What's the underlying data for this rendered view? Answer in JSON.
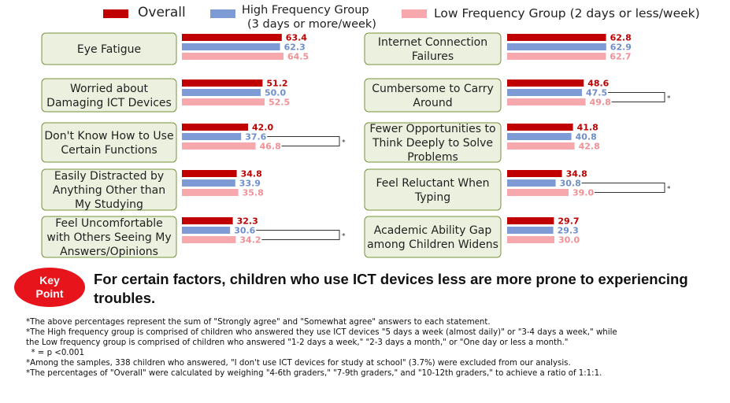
{
  "legend": {
    "overall": "Overall",
    "high_line1": "High Frequency Group",
    "high_line2": "(3 days or more/week)",
    "low": "Low Frequency Group (2 days or less/week)"
  },
  "colors": {
    "overall": "#c00000",
    "high": "#7f9bd6",
    "low": "#f6a8ad",
    "high_text": "#6e8fcc",
    "low_text": "#f29096",
    "box_fill": "#ebf1de",
    "box_border": "#77933c"
  },
  "chart_data": {
    "type": "bar",
    "orientation": "horizontal",
    "series_names": [
      "Overall",
      "High Frequency Group (3 days or more/week)",
      "Low Frequency Group (2 days or less/week)"
    ],
    "significance_marker": "*",
    "categories": [
      {
        "label_lines": [
          "Eye Fatigue"
        ],
        "values": [
          63.4,
          62.3,
          64.5
        ],
        "sig": false
      },
      {
        "label_lines": [
          "Worried about",
          "Damaging ICT Devices"
        ],
        "values": [
          51.2,
          50.0,
          52.5
        ],
        "sig": false
      },
      {
        "label_lines": [
          "Don't Know How to Use",
          "Certain Functions"
        ],
        "values": [
          42.0,
          37.6,
          46.8
        ],
        "sig": true
      },
      {
        "label_lines": [
          "Easily Distracted by",
          "Anything Other than",
          "My Studying"
        ],
        "values": [
          34.8,
          33.9,
          35.8
        ],
        "sig": false
      },
      {
        "label_lines": [
          "Feel Uncomfortable",
          "with Others Seeing My",
          "Answers/Opinions"
        ],
        "values": [
          32.3,
          30.6,
          34.2
        ],
        "sig": true
      },
      {
        "label_lines": [
          "Internet Connection",
          "Failures"
        ],
        "values": [
          62.8,
          62.9,
          62.7
        ],
        "sig": false
      },
      {
        "label_lines": [
          "Cumbersome to Carry",
          "Around"
        ],
        "values": [
          48.6,
          47.5,
          49.8
        ],
        "sig": true
      },
      {
        "label_lines": [
          "Fewer Opportunities to",
          "Think Deeply to Solve",
          "Problems"
        ],
        "values": [
          41.8,
          40.8,
          42.8
        ],
        "sig": false
      },
      {
        "label_lines": [
          "Feel Reluctant When",
          "Typing"
        ],
        "values": [
          34.8,
          30.8,
          39.0
        ],
        "sig": true
      },
      {
        "label_lines": [
          "Academic Ability Gap",
          "among Children Widens"
        ],
        "values": [
          29.7,
          29.3,
          30.0
        ],
        "sig": false
      }
    ]
  },
  "key_point": {
    "badge_line1": "Key",
    "badge_line2": "Point",
    "text": "For certain factors, children who use  ICT devices less are more prone to experiencing troubles."
  },
  "notes": [
    "*The above percentages represent the sum of \"Strongly agree\" and \"Somewhat agree\" answers to each statement.",
    "*The High frequency group is comprised of children who answered they use ICT devices \"5 days a week (almost daily)\" or \"3-4 days a week,\" while",
    "the Low frequency group is comprised of children who answered \"1-2 days a week,\" \"2-3 days a month,\" or \"One day or less a month.\"",
    "  * = p <0.001",
    "*Among the samples, 338 children who answered, \"I don't use ICT devices for study at school\" (3.7%) were excluded from our analysis.",
    "*The percentages of \"Overall\" were calculated by weighing \"4-6th graders,\" \"7-9th graders,\" and \"10-12th graders,\" to achieve a ratio of 1:1:1."
  ]
}
